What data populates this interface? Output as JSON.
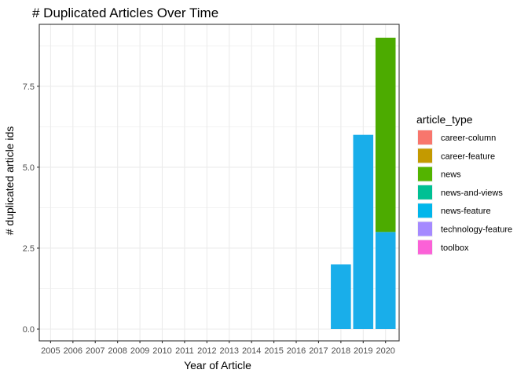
{
  "chart_data": {
    "type": "bar",
    "stacked": true,
    "title": "# Duplicated Articles Over Time",
    "xlabel": "Year of Article",
    "ylabel": "# duplicated article ids",
    "categories": [
      "2005",
      "2006",
      "2007",
      "2008",
      "2009",
      "2010",
      "2011",
      "2012",
      "2013",
      "2014",
      "2015",
      "2016",
      "2017",
      "2018",
      "2019",
      "2020"
    ],
    "ylim": [
      0,
      9
    ],
    "yticks": [
      0,
      2.5,
      5,
      7.5
    ],
    "ytick_labels": [
      "0.0",
      "2.5",
      "5.0",
      "7.5"
    ],
    "grid": true,
    "legend": {
      "title": "article_type",
      "position": "right",
      "entries": [
        {
          "name": "career-column",
          "color": "#F8766D"
        },
        {
          "name": "career-feature",
          "color": "#C49A00"
        },
        {
          "name": "news",
          "color": "#53B400"
        },
        {
          "name": "news-and-views",
          "color": "#00C094"
        },
        {
          "name": "news-feature",
          "color": "#00B6EB"
        },
        {
          "name": "technology-feature",
          "color": "#A58AFF"
        },
        {
          "name": "toolbox",
          "color": "#FB61D7"
        }
      ]
    },
    "series": [
      {
        "name": "news-feature",
        "color": "#19AEEA",
        "values": [
          0,
          0,
          0,
          0,
          0,
          0,
          0,
          0,
          0,
          0,
          0,
          0,
          0,
          2,
          6,
          3
        ]
      },
      {
        "name": "news",
        "color": "#4CAB00",
        "values": [
          0,
          0,
          0,
          0,
          0,
          0,
          0,
          0,
          0,
          0,
          0,
          0,
          0,
          0,
          0,
          6
        ]
      }
    ]
  }
}
